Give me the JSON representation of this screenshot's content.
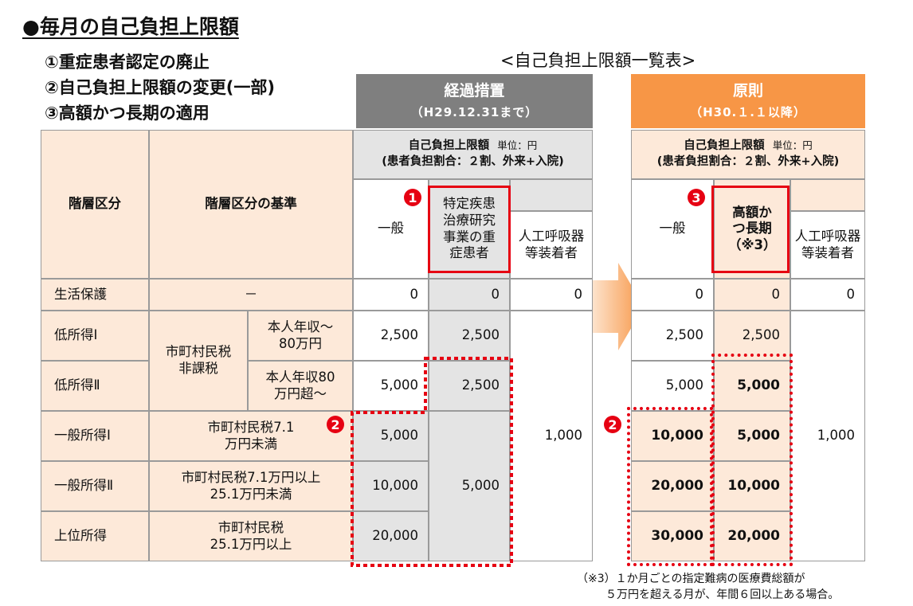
{
  "title": "●毎月の自己負担上限額",
  "points": [
    "①重症患者認定の廃止",
    "②自己負担上限額の変更(一部)",
    "③高額かつ長期の適用"
  ],
  "list_heading": "<自己負担上限額一覧表>",
  "transitional": {
    "title": "経過措置",
    "subtitle": "（H29.12.31まで）",
    "color": "#7f7f7f"
  },
  "principle": {
    "title": "原則",
    "subtitle": "（H30.１.１以降）",
    "color": "#f79646"
  },
  "table": {
    "col_tier": "階層区分",
    "col_criteria": "階層区分の基準",
    "limit_label": "自己負担上限額",
    "unit": "単位：円",
    "ratio": "(患者負担割合：２割、外来+入院)",
    "general": "一般",
    "severe": "特定疾患治療研究事業の重症患者",
    "ventilator": "人工呼吸器等装着者",
    "high_long": "高額かつ長期（※3）",
    "marks": {
      "one": "1",
      "two": "2",
      "three": "3"
    },
    "rows": [
      {
        "tier": "生活保護",
        "criteria": "－",
        "t_general": "0",
        "t_severe": "0",
        "t_vent": "0",
        "p_general": "0",
        "p_highlong": "0",
        "p_vent": "0"
      },
      {
        "tier": "低所得Ⅰ",
        "criteria_main": "市町村民税非課税",
        "criteria_sub": "本人年収～80万円",
        "t_general": "2,500",
        "t_severe": "2,500",
        "p_general": "2,500",
        "p_highlong": "2,500"
      },
      {
        "tier": "低所得Ⅱ",
        "criteria_sub": "本人年収80万円超～",
        "t_general": "5,000",
        "t_severe": "2,500",
        "p_general": "5,000",
        "p_highlong": "5,000"
      },
      {
        "tier": "一般所得Ⅰ",
        "criteria": "市町村民税7.1万円未満",
        "t_general": "5,000",
        "p_general": "10,000",
        "p_highlong": "5,000"
      },
      {
        "tier": "一般所得Ⅱ",
        "criteria": "市町村民税7.1万円以上25.1万円未満",
        "t_general": "10,000",
        "p_general": "20,000",
        "p_highlong": "10,000"
      },
      {
        "tier": "上位所得",
        "criteria": "市町村民税25.1万円以上",
        "t_general": "20,000",
        "p_general": "30,000",
        "p_highlong": "20,000"
      }
    ],
    "merged_severe": "5,000",
    "merged_vent": "1,000"
  },
  "note_line1": "（※3）１か月ごとの指定難病の医療費総額が",
  "note_line2": "５万円を超える月が、年間６回以上ある場合。",
  "colors": {
    "accent_red": "#e60012",
    "peach": "#fde9d9",
    "gray_cell": "#e4e4e4",
    "arrow": "#f79646"
  }
}
